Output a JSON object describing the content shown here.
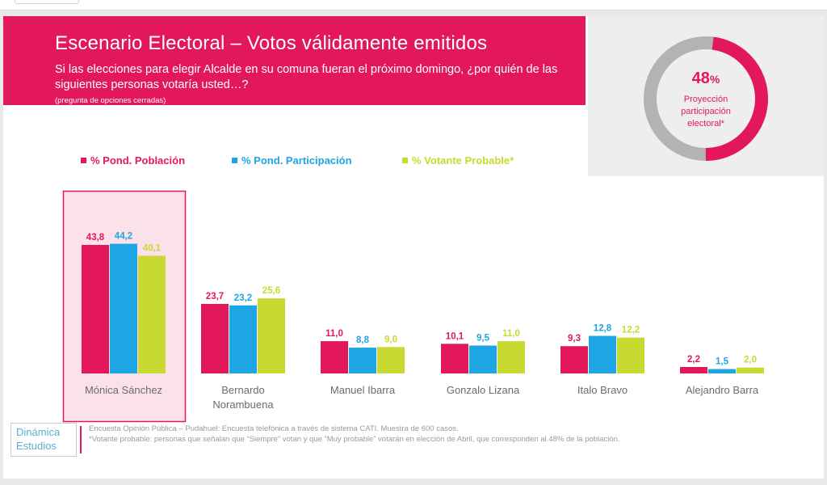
{
  "slide": {
    "title": "Escenario Electoral – Votos válidamente emitidos",
    "question": "Si las elecciones para elegir Alcalde en su comuna fueran el próximo domingo, ¿por quién de las siguientes personas votaría usted…?",
    "note": "(pregunta de opciones cerradas)"
  },
  "kpi": {
    "value": "48",
    "unit": "%",
    "fraction": 0.48,
    "label": "Proyección participación electoral*"
  },
  "colors": {
    "accent": "#e2185b",
    "series": [
      "#e2185b",
      "#1ea5e4",
      "#c8d932"
    ],
    "highlight_fill": "#fbe1ea",
    "donut_track": "#b3b3b3"
  },
  "chart_data": {
    "type": "bar",
    "categories": [
      "Mónica Sánchez",
      "Bernardo Norambuena",
      "Manuel Ibarra",
      "Gonzalo Lizana",
      "Italo Bravo",
      "Alejandro Barra"
    ],
    "category_lines": [
      [
        "Mónica Sánchez"
      ],
      [
        "Bernardo",
        "Norambuena"
      ],
      [
        "Manuel Ibarra"
      ],
      [
        "Gonzalo Lizana"
      ],
      [
        "Italo Bravo"
      ],
      [
        "Alejandro Barra"
      ]
    ],
    "series": [
      {
        "name": "% Pond. Población",
        "values": [
          43.8,
          23.7,
          11.0,
          10.1,
          9.3,
          2.2
        ],
        "labels": [
          "43,8",
          "23,7",
          "11,0",
          "10,1",
          "9,3",
          "2,2"
        ]
      },
      {
        "name": "% Pond. Participación",
        "values": [
          44.2,
          23.2,
          8.8,
          9.5,
          12.8,
          1.5
        ],
        "labels": [
          "44,2",
          "23,2",
          "8,8",
          "9,5",
          "12,8",
          "1,5"
        ]
      },
      {
        "name": "% Votante Probable*",
        "values": [
          40.1,
          25.6,
          9.0,
          11.0,
          12.2,
          2.0
        ],
        "labels": [
          "40,1",
          "25,6",
          "9,0",
          "11,0",
          "12,2",
          "2,0"
        ]
      }
    ],
    "ylim": [
      0,
      50
    ],
    "highlighted_category": "Mónica Sánchez",
    "legend_position": "top-left",
    "grid": false
  },
  "footer": {
    "logo_line1": "Dinámica",
    "logo_line2": "Estudios",
    "line1": "Encuesta Opinión Pública – Pudahuel: Encuesta telefónica a través de sistema CATI. Muestra de 600 casos.",
    "line2": "*Votante probable: personas que señalan que “Siempre” votan y que “Muy probable” votarán en elección de Abril, que corresponden al 48% de la población."
  }
}
